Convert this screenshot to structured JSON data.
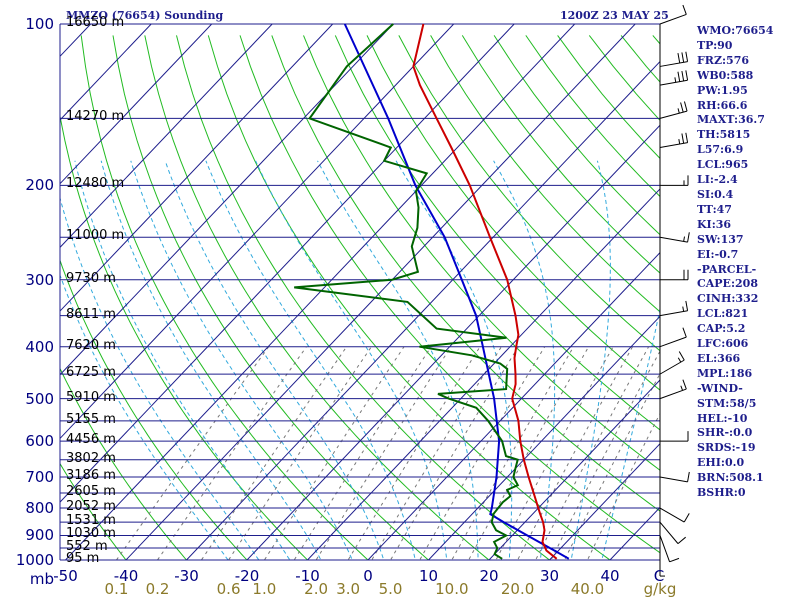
{
  "header": {
    "station_title": "MMZO (76654) Sounding",
    "datetime": "1200Z 23 MAY 25"
  },
  "indices": [
    "WMO:76654",
    "TP:90",
    "FRZ:576",
    "WB0:588",
    "PW:1.95",
    "RH:66.6",
    "MAXT:36.7",
    "TH:5815",
    "L57:6.9",
    "LCL:965",
    "LI:-2.4",
    "SI:0.4",
    "TT:47",
    "KI:36",
    "SW:137",
    "EI:-0.7",
    "-PARCEL-",
    "CAPE:208",
    "CINH:332",
    "LCL:821",
    "CAP:5.2",
    "LFC:606",
    "EL:366",
    "MPL:186",
    "-WIND-",
    "STM:58/5",
    "HEL:-10",
    "SHR-:0.0",
    "SRDS:-19",
    "EHI:0.0",
    "BRN:508.1",
    "BSHR:0"
  ],
  "colors": {
    "isobar": "#1e1e8c",
    "isotherm": "#1e1e8c",
    "dry_adiabat": "#22bb22",
    "moist_adiabat": "#33aadd",
    "mixing_ratio": "#777777",
    "temperature": "#cc0000",
    "dewpoint": "#006400",
    "parcel": "#0000cc",
    "wind_barbs": "#000000"
  },
  "chart_data": {
    "type": "skew-t",
    "title": "MMZO (76654) Sounding",
    "subtitle": "1200Z 23 MAY 25",
    "pressure_axis_labels": [
      "100",
      "200",
      "300",
      "400",
      "500",
      "600",
      "700",
      "800",
      "900",
      "1000",
      "mb"
    ],
    "pressure_ticks": [
      100,
      200,
      300,
      400,
      500,
      600,
      700,
      800,
      900,
      1000
    ],
    "temperature_axis_labels": [
      "-50",
      "-40",
      "-30",
      "-20",
      "-10",
      "0",
      "10",
      "20",
      "30",
      "40",
      "C"
    ],
    "temperature_ticks": [
      -50,
      -40,
      -30,
      -20,
      -10,
      0,
      10,
      20,
      30,
      40
    ],
    "mixing_ratio_axis_labels": [
      "0.1",
      "0.2",
      "0.6",
      "1.0",
      "2.0",
      "3.0",
      "5.0",
      "10.0",
      "20.0",
      "40.0",
      "g/kg"
    ],
    "mixing_ratio_ticks": [
      0.1,
      0.2,
      0.6,
      1.0,
      2.0,
      3.0,
      5.0,
      10.0,
      20.0,
      40.0
    ],
    "height_labels": [
      {
        "p": 100,
        "label": "16650 m"
      },
      {
        "p": 150,
        "label": "14270 m"
      },
      {
        "p": 200,
        "label": "12480 m"
      },
      {
        "p": 250,
        "label": "11000 m"
      },
      {
        "p": 300,
        "label": "9730 m"
      },
      {
        "p": 350,
        "label": "8611 m"
      },
      {
        "p": 400,
        "label": "7620 m"
      },
      {
        "p": 450,
        "label": "6725 m"
      },
      {
        "p": 500,
        "label": "5910 m"
      },
      {
        "p": 550,
        "label": "5155 m"
      },
      {
        "p": 600,
        "label": "4456 m"
      },
      {
        "p": 650,
        "label": "3802 m"
      },
      {
        "p": 700,
        "label": "3186 m"
      },
      {
        "p": 750,
        "label": "2605 m"
      },
      {
        "p": 800,
        "label": "2052 m"
      },
      {
        "p": 850,
        "label": "1531 m"
      },
      {
        "p": 900,
        "label": "1030 m"
      },
      {
        "p": 950,
        "label": "552 m"
      },
      {
        "p": 1000,
        "label": "95 m"
      }
    ],
    "temperature": [
      {
        "p": 995,
        "t": 31.0
      },
      {
        "p": 960,
        "t": 28.0
      },
      {
        "p": 925,
        "t": 26.0
      },
      {
        "p": 880,
        "t": 24.5
      },
      {
        "p": 850,
        "t": 23.0
      },
      {
        "p": 820,
        "t": 21.2
      },
      {
        "p": 800,
        "t": 20.0
      },
      {
        "p": 760,
        "t": 17.5
      },
      {
        "p": 700,
        "t": 13.5
      },
      {
        "p": 650,
        "t": 10.0
      },
      {
        "p": 600,
        "t": 6.5
      },
      {
        "p": 550,
        "t": 3.0
      },
      {
        "p": 500,
        "t": -1.5
      },
      {
        "p": 470,
        "t": -3.2
      },
      {
        "p": 450,
        "t": -4.8
      },
      {
        "p": 420,
        "t": -7.5
      },
      {
        "p": 400,
        "t": -9.0
      },
      {
        "p": 380,
        "t": -10.5
      },
      {
        "p": 350,
        "t": -14.0
      },
      {
        "p": 300,
        "t": -21.0
      },
      {
        "p": 250,
        "t": -30.5
      },
      {
        "p": 200,
        "t": -42.0
      },
      {
        "p": 170,
        "t": -51.0
      },
      {
        "p": 150,
        "t": -58.0
      },
      {
        "p": 130,
        "t": -66.0
      },
      {
        "p": 120,
        "t": -70.0
      },
      {
        "p": 100,
        "t": -75.0
      }
    ],
    "dewpoint": [
      {
        "p": 995,
        "t": 22.0
      },
      {
        "p": 975,
        "t": 20.0
      },
      {
        "p": 950,
        "t": 19.5
      },
      {
        "p": 925,
        "t": 18.0
      },
      {
        "p": 900,
        "t": 19.0
      },
      {
        "p": 880,
        "t": 16.5
      },
      {
        "p": 850,
        "t": 14.5
      },
      {
        "p": 820,
        "t": 13.5
      },
      {
        "p": 780,
        "t": 13.2
      },
      {
        "p": 760,
        "t": 13.5
      },
      {
        "p": 740,
        "t": 12.0
      },
      {
        "p": 725,
        "t": 13.0
      },
      {
        "p": 700,
        "t": 11.0
      },
      {
        "p": 675,
        "t": 10.0
      },
      {
        "p": 650,
        "t": 9.0
      },
      {
        "p": 640,
        "t": 6.5
      },
      {
        "p": 600,
        "t": 3.5
      },
      {
        "p": 550,
        "t": -2.0
      },
      {
        "p": 520,
        "t": -6.0
      },
      {
        "p": 500,
        "t": -12.0
      },
      {
        "p": 490,
        "t": -14.5
      },
      {
        "p": 480,
        "t": -4.0
      },
      {
        "p": 440,
        "t": -7.0
      },
      {
        "p": 430,
        "t": -9.0
      },
      {
        "p": 415,
        "t": -15.0
      },
      {
        "p": 400,
        "t": -25.0
      },
      {
        "p": 385,
        "t": -12.0
      },
      {
        "p": 370,
        "t": -25.0
      },
      {
        "p": 330,
        "t": -34.0
      },
      {
        "p": 310,
        "t": -55.0
      },
      {
        "p": 300,
        "t": -40.0
      },
      {
        "p": 290,
        "t": -37.0
      },
      {
        "p": 260,
        "t": -42.0
      },
      {
        "p": 240,
        "t": -44.0
      },
      {
        "p": 220,
        "t": -47.0
      },
      {
        "p": 205,
        "t": -50.0
      },
      {
        "p": 190,
        "t": -51.0
      },
      {
        "p": 180,
        "t": -60.0
      },
      {
        "p": 170,
        "t": -61.0
      },
      {
        "p": 150,
        "t": -79.0
      },
      {
        "p": 120,
        "t": -81.0
      },
      {
        "p": 100,
        "t": -80.0
      }
    ],
    "parcel": [
      {
        "p": 995,
        "t": 33.0
      },
      {
        "p": 960,
        "t": 29.3
      },
      {
        "p": 900,
        "t": 22.5
      },
      {
        "p": 850,
        "t": 16.5
      },
      {
        "p": 821,
        "t": 13.0
      },
      {
        "p": 800,
        "t": 12.3
      },
      {
        "p": 700,
        "t": 8.2
      },
      {
        "p": 600,
        "t": 3.0
      },
      {
        "p": 500,
        "t": -4.5
      },
      {
        "p": 400,
        "t": -14.5
      },
      {
        "p": 350,
        "t": -20.5
      },
      {
        "p": 300,
        "t": -28.5
      },
      {
        "p": 250,
        "t": -38.0
      },
      {
        "p": 200,
        "t": -51.0
      },
      {
        "p": 150,
        "t": -66.0
      },
      {
        "p": 100,
        "t": -88.0
      }
    ],
    "wind_barbs": [
      {
        "p": 100,
        "dir": 70,
        "kt": 10
      },
      {
        "p": 120,
        "dir": 80,
        "kt": 30
      },
      {
        "p": 130,
        "dir": 80,
        "kt": 35
      },
      {
        "p": 150,
        "dir": 75,
        "kt": 25
      },
      {
        "p": 170,
        "dir": 80,
        "kt": 25
      },
      {
        "p": 200,
        "dir": 90,
        "kt": 15
      },
      {
        "p": 250,
        "dir": 100,
        "kt": 15
      },
      {
        "p": 300,
        "dir": 90,
        "kt": 20
      },
      {
        "p": 350,
        "dir": 80,
        "kt": 15
      },
      {
        "p": 400,
        "dir": 70,
        "kt": 10
      },
      {
        "p": 450,
        "dir": 60,
        "kt": 15
      },
      {
        "p": 500,
        "dir": 70,
        "kt": 15
      },
      {
        "p": 600,
        "dir": 90,
        "kt": 10
      },
      {
        "p": 700,
        "dir": 100,
        "kt": 10
      },
      {
        "p": 800,
        "dir": 120,
        "kt": 10
      },
      {
        "p": 850,
        "dir": 140,
        "kt": 10
      },
      {
        "p": 900,
        "dir": 160,
        "kt": 10
      },
      {
        "p": 950,
        "dir": 180,
        "kt": 5
      }
    ]
  }
}
